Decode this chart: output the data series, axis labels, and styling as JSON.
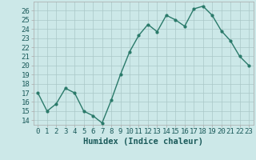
{
  "x": [
    0,
    1,
    2,
    3,
    4,
    5,
    6,
    7,
    8,
    9,
    10,
    11,
    12,
    13,
    14,
    15,
    16,
    17,
    18,
    19,
    20,
    21,
    22,
    23
  ],
  "y": [
    17,
    15,
    15.8,
    17.5,
    17,
    15,
    14.5,
    13.7,
    16.2,
    19,
    21.5,
    23.3,
    24.5,
    23.7,
    25.5,
    25,
    24.3,
    26.2,
    26.5,
    25.5,
    23.8,
    22.7,
    21,
    20
  ],
  "line_color": "#2a7a6a",
  "marker": "o",
  "marker_size": 2.0,
  "line_width": 1.0,
  "bg_color": "#cce8e8",
  "grid_color": "#aac8c8",
  "xlabel": "Humidex (Indice chaleur)",
  "xlim": [
    -0.5,
    23.5
  ],
  "ylim": [
    13.5,
    27
  ],
  "yticks": [
    14,
    15,
    16,
    17,
    18,
    19,
    20,
    21,
    22,
    23,
    24,
    25,
    26
  ],
  "xtick_labels": [
    "0",
    "1",
    "2",
    "3",
    "4",
    "5",
    "6",
    "7",
    "8",
    "9",
    "10",
    "11",
    "12",
    "13",
    "14",
    "15",
    "16",
    "17",
    "18",
    "19",
    "20",
    "21",
    "22",
    "23"
  ],
  "tick_fontsize": 6.5,
  "label_fontsize": 7.5
}
